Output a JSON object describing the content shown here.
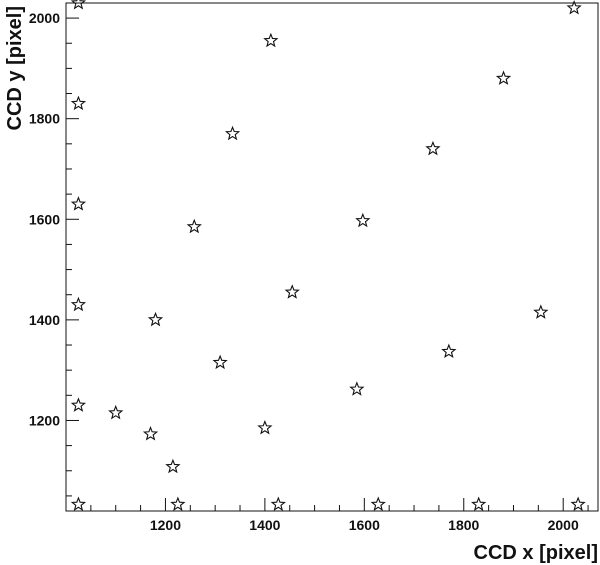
{
  "chart_data": {
    "type": "scatter",
    "xlabel": "CCD x [pixel]",
    "ylabel": "CCD y [pixel]",
    "xlim": [
      1000,
      2070
    ],
    "ylim": [
      1020,
      2030
    ],
    "x_ticks": [
      1200,
      1400,
      1600,
      1800,
      2000
    ],
    "y_ticks": [
      1200,
      1400,
      1600,
      1800,
      2000
    ],
    "grid": false,
    "marker": "star-outline",
    "colors": {
      "marker_stroke": "#111111",
      "axis": "#111111",
      "background": "#ffffff"
    },
    "series": [
      {
        "points": [
          {
            "x": 1025,
            "y": 2030
          },
          {
            "x": 1025,
            "y": 1830
          },
          {
            "x": 1025,
            "y": 1630
          },
          {
            "x": 1025,
            "y": 1430
          },
          {
            "x": 1025,
            "y": 1230
          },
          {
            "x": 1025,
            "y": 1033
          },
          {
            "x": 1100,
            "y": 1215
          },
          {
            "x": 1170,
            "y": 1173
          },
          {
            "x": 1180,
            "y": 1400
          },
          {
            "x": 1215,
            "y": 1108
          },
          {
            "x": 1225,
            "y": 1033
          },
          {
            "x": 1258,
            "y": 1585
          },
          {
            "x": 1310,
            "y": 1315
          },
          {
            "x": 1335,
            "y": 1770
          },
          {
            "x": 1400,
            "y": 1185
          },
          {
            "x": 1412,
            "y": 1955
          },
          {
            "x": 1427,
            "y": 1033
          },
          {
            "x": 1455,
            "y": 1455
          },
          {
            "x": 1585,
            "y": 1262
          },
          {
            "x": 1597,
            "y": 1597
          },
          {
            "x": 1628,
            "y": 1033
          },
          {
            "x": 1738,
            "y": 1740
          },
          {
            "x": 1770,
            "y": 1337
          },
          {
            "x": 1830,
            "y": 1033
          },
          {
            "x": 1880,
            "y": 1880
          },
          {
            "x": 1955,
            "y": 1415
          },
          {
            "x": 2022,
            "y": 2020
          },
          {
            "x": 2030,
            "y": 1033
          }
        ]
      }
    ]
  }
}
